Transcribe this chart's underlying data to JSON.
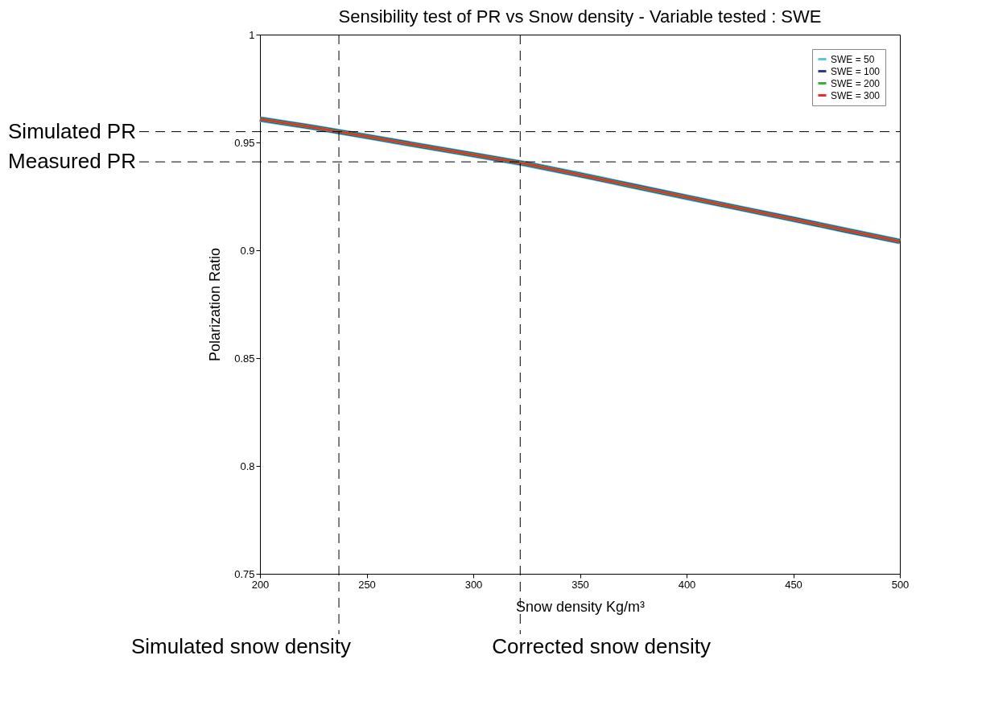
{
  "chart_data": {
    "type": "line",
    "title": "Sensibility test of PR vs Snow density - Variable tested : SWE",
    "xlabel": "Snow density Kg/m³",
    "ylabel": "Polarization Ratio",
    "x": [
      200,
      225,
      250,
      275,
      300,
      325,
      350,
      375,
      400,
      425,
      450,
      475,
      500
    ],
    "series": [
      {
        "name": "SWE = 50",
        "color": "#5bc8d8",
        "values": [
          0.9608,
          0.957,
          0.9528,
          0.9485,
          0.9443,
          0.94,
          0.935,
          0.9298,
          0.9246,
          0.9195,
          0.9144,
          0.9092,
          0.9041
        ]
      },
      {
        "name": "SWE = 100",
        "color": "#2a3a9a",
        "values": [
          0.9608,
          0.957,
          0.9528,
          0.9485,
          0.9443,
          0.94,
          0.935,
          0.9298,
          0.9246,
          0.9195,
          0.9144,
          0.9092,
          0.9041
        ]
      },
      {
        "name": "SWE = 200",
        "color": "#3ab03a",
        "values": [
          0.9608,
          0.957,
          0.9528,
          0.9485,
          0.9443,
          0.94,
          0.935,
          0.9298,
          0.9246,
          0.9195,
          0.9144,
          0.9092,
          0.9041
        ]
      },
      {
        "name": "SWE = 300",
        "color": "#ee2a2a",
        "values": [
          0.9608,
          0.957,
          0.9528,
          0.9485,
          0.9443,
          0.94,
          0.935,
          0.9298,
          0.9246,
          0.9195,
          0.9144,
          0.9092,
          0.9041
        ]
      }
    ],
    "xlim": [
      200,
      500
    ],
    "xticks": [
      200,
      250,
      300,
      350,
      400,
      450,
      500
    ],
    "ylim": [
      0.75,
      1
    ],
    "yticks": [
      0.75,
      0.8,
      0.85,
      0.9,
      0.95,
      1
    ],
    "ref_lines": [
      {
        "axis": "y",
        "value": 0.955,
        "label": "Simulated PR",
        "line_style": "dashed",
        "color": "#000000"
      },
      {
        "axis": "y",
        "value": 0.941,
        "label": "Measured PR",
        "line_style": "dashed",
        "color": "#000000"
      },
      {
        "axis": "x",
        "value": 237,
        "label": "Simulated snow density",
        "line_style": "dashed",
        "color": "#000000"
      },
      {
        "axis": "x",
        "value": 322,
        "label": "Corrected snow density",
        "line_style": "dashed",
        "color": "#000000"
      }
    ],
    "grid": false,
    "legend": "top right",
    "line_style": "solid",
    "marker": "none"
  }
}
